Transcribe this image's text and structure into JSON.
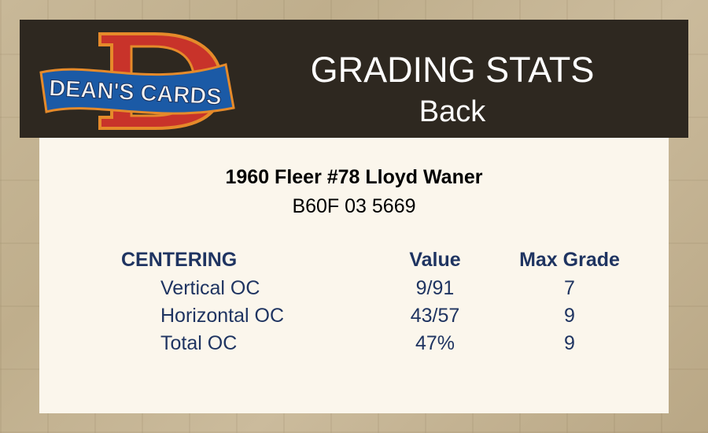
{
  "header": {
    "logo_text": "DEAN'S CARDS",
    "title": "GRADING STATS",
    "subtitle": "Back"
  },
  "card": {
    "name": "1960 Fleer #78 Lloyd Waner",
    "cert": "B60F 03 5669"
  },
  "table": {
    "headers": [
      "CENTERING",
      "Value",
      "Max Grade"
    ],
    "rows": [
      {
        "label": "Vertical OC",
        "value": "9/91",
        "max_grade": "7"
      },
      {
        "label": "Horizontal OC",
        "value": "43/57",
        "max_grade": "9"
      },
      {
        "label": "Total OC",
        "value": "47%",
        "max_grade": "9"
      }
    ]
  },
  "colors": {
    "header_bg": "#2e2820",
    "panel_bg": "#fbf6ec",
    "stat_text": "#1f3461"
  }
}
